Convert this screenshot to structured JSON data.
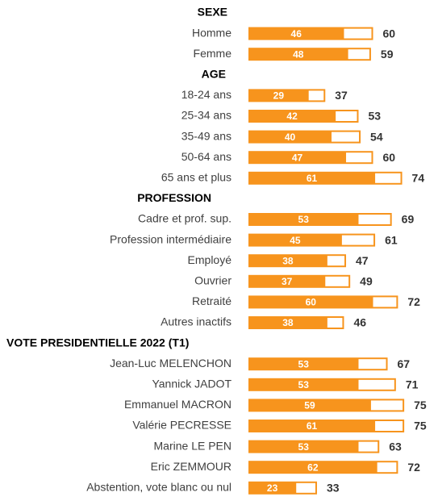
{
  "chart_data": {
    "type": "bar",
    "xlim": [
      0,
      80
    ],
    "colors": {
      "fill": "#f7941d",
      "outline": "#f7941d"
    },
    "groups": [
      {
        "title": "SEXE",
        "categories": [
          "Homme",
          "Femme"
        ],
        "series": [
          {
            "values": [
              46,
              48
            ]
          },
          {
            "values": [
              60,
              59
            ]
          }
        ]
      },
      {
        "title": "AGE",
        "categories": [
          "18-24 ans",
          "25-34 ans",
          "35-49 ans",
          "50-64 ans",
          "65 ans et plus"
        ],
        "series": [
          {
            "values": [
              29,
              42,
              40,
              47,
              61
            ]
          },
          {
            "values": [
              37,
              53,
              54,
              60,
              74
            ]
          }
        ]
      },
      {
        "title": "PROFESSION",
        "categories": [
          "Cadre et prof. sup.",
          "Profession intermédiaire",
          "Employé",
          "Ouvrier",
          "Retraité",
          "Autres inactifs"
        ],
        "series": [
          {
            "values": [
              53,
              45,
              38,
              37,
              60,
              38
            ]
          },
          {
            "values": [
              69,
              61,
              47,
              49,
              72,
              46
            ]
          }
        ]
      },
      {
        "title": "VOTE PRESIDENTIELLE 2022 (T1)",
        "categories": [
          "Jean-Luc MELENCHON",
          "Yannick JADOT",
          "Emmanuel MACRON",
          "Valérie PECRESSE",
          "Marine LE PEN",
          "Eric ZEMMOUR",
          "Abstention, vote blanc ou nul"
        ],
        "series": [
          {
            "values": [
              53,
              53,
              59,
              61,
              53,
              62,
              23
            ]
          },
          {
            "values": [
              67,
              71,
              75,
              75,
              63,
              72,
              33
            ]
          }
        ]
      }
    ]
  }
}
